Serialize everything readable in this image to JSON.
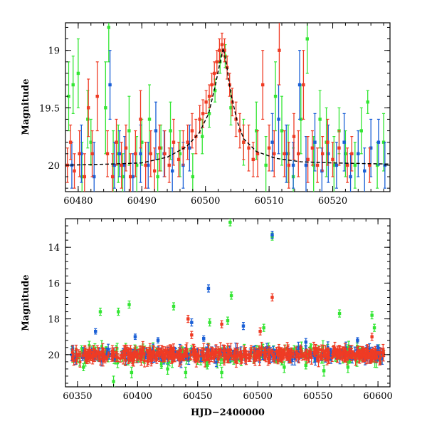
{
  "chart_data": [
    {
      "type": "scatter",
      "xlabel": "",
      "ylabel": "Magnitude",
      "xlim": [
        60478,
        60529
      ],
      "ylim": [
        20.23,
        18.76
      ],
      "y_inverted": true,
      "x_ticks": [
        60480,
        60490,
        60500,
        60510,
        60520
      ],
      "y_ticks": [
        19,
        19.5,
        20
      ],
      "y_tick_labels": [
        "19",
        "19.5",
        "20"
      ],
      "colors": {
        "green": "#33e633",
        "blue": "#1a5fd6",
        "red": "#ef3b24",
        "model": "#000000"
      },
      "model_curve": {
        "style": "dashed",
        "x": [
          60478,
          60485,
          60490,
          60494,
          60497,
          60499,
          60500.5,
          60501.5,
          60502.3,
          60502.8,
          60503.3,
          60504,
          60505,
          60506,
          60508,
          60511,
          60515,
          60520,
          60529
        ],
        "y": [
          20.0,
          19.99,
          19.98,
          19.93,
          19.84,
          19.72,
          19.55,
          19.32,
          19.1,
          18.98,
          19.12,
          19.38,
          19.62,
          19.77,
          19.88,
          19.94,
          19.97,
          19.98,
          19.99
        ]
      },
      "series": [
        {
          "color": "green",
          "points": [
            [
              60478.5,
              19.4,
              0.3
            ],
            [
              60479.2,
              19.3,
              0.25
            ],
            [
              60480.0,
              19.2,
              0.3
            ],
            [
              60480.6,
              20.1,
              0.3
            ],
            [
              60481.5,
              19.6,
              0.25
            ],
            [
              60482.0,
              19.8,
              0.2
            ],
            [
              60484.3,
              19.5,
              0.4
            ],
            [
              60484.8,
              18.8,
              0.3
            ],
            [
              60485.5,
              20.0,
              0.3
            ],
            [
              60486.3,
              19.9,
              0.25
            ],
            [
              60487.0,
              20.1,
              0.2
            ],
            [
              60488.0,
              19.7,
              0.3
            ],
            [
              60489.2,
              20.0,
              0.25
            ],
            [
              60490.0,
              19.8,
              0.2
            ],
            [
              60491.2,
              19.6,
              0.3
            ],
            [
              60492.5,
              20.1,
              0.2
            ],
            [
              60493.0,
              19.85,
              0.2
            ],
            [
              60494.5,
              19.7,
              0.25
            ],
            [
              60496.0,
              19.9,
              0.2
            ],
            [
              60498.0,
              20.1,
              0.2
            ],
            [
              60499.5,
              19.75,
              0.15
            ],
            [
              60500.6,
              19.55,
              0.12
            ],
            [
              60501.5,
              19.35,
              0.1
            ],
            [
              60502.3,
              19.1,
              0.1
            ],
            [
              60503.1,
              19.05,
              0.1
            ],
            [
              60504.0,
              19.5,
              0.15
            ],
            [
              60506.0,
              19.8,
              0.2
            ],
            [
              60508.0,
              19.7,
              0.25
            ],
            [
              60509.5,
              20.0,
              0.25
            ],
            [
              60511.0,
              19.4,
              0.3
            ],
            [
              60512.0,
              19.7,
              0.3
            ],
            [
              60513.0,
              19.9,
              0.25
            ],
            [
              60513.8,
              20.1,
              0.25
            ],
            [
              60515.0,
              19.6,
              0.3
            ],
            [
              60516.0,
              18.9,
              0.3
            ],
            [
              60517.0,
              20.0,
              0.25
            ],
            [
              60518.0,
              19.6,
              0.25
            ],
            [
              60519.0,
              19.8,
              0.3
            ],
            [
              60520.2,
              20.0,
              0.25
            ],
            [
              60521.0,
              19.7,
              0.2
            ],
            [
              60522.0,
              19.9,
              0.2
            ],
            [
              60523.5,
              20.0,
              0.2
            ],
            [
              60524.5,
              19.7,
              0.2
            ],
            [
              60525.5,
              19.45,
              0.1
            ],
            [
              60527.0,
              20.0,
              0.2
            ],
            [
              60528.0,
              19.8,
              0.25
            ]
          ]
        },
        {
          "color": "blue",
          "points": [
            [
              60479.0,
              20.0,
              0.2
            ],
            [
              60480.5,
              19.9,
              0.25
            ],
            [
              60482.5,
              20.1,
              0.3
            ],
            [
              60485.0,
              19.3,
              0.3
            ],
            [
              60485.7,
              20.0,
              0.2
            ],
            [
              60486.5,
              19.9,
              0.2
            ],
            [
              60487.3,
              20.0,
              0.25
            ],
            [
              60488.6,
              20.1,
              0.2
            ],
            [
              60489.8,
              19.9,
              0.25
            ],
            [
              60491.0,
              20.0,
              0.2
            ],
            [
              60492.2,
              19.7,
              0.25
            ],
            [
              60493.5,
              19.9,
              0.2
            ],
            [
              60494.8,
              20.05,
              0.2
            ],
            [
              60496.5,
              20.0,
              0.2
            ],
            [
              60497.5,
              19.85,
              0.2
            ],
            [
              60510.5,
              19.8,
              0.25
            ],
            [
              60511.5,
              19.6,
              0.3
            ],
            [
              60512.7,
              19.9,
              0.25
            ],
            [
              60513.8,
              20.0,
              0.2
            ],
            [
              60514.8,
              19.3,
              0.3
            ],
            [
              60515.8,
              20.0,
              0.25
            ],
            [
              60517.2,
              19.8,
              0.25
            ],
            [
              60518.3,
              20.05,
              0.2
            ],
            [
              60519.3,
              19.9,
              0.25
            ],
            [
              60520.6,
              20.0,
              0.2
            ],
            [
              60521.8,
              19.8,
              0.25
            ],
            [
              60522.8,
              20.1,
              0.2
            ],
            [
              60524.0,
              19.9,
              0.2
            ],
            [
              60525.0,
              20.05,
              0.2
            ],
            [
              60526.0,
              19.85,
              0.25
            ],
            [
              60527.2,
              19.8,
              0.2
            ],
            [
              60528.2,
              20.0,
              0.2
            ]
          ]
        },
        {
          "color": "red",
          "points": [
            [
              60478.3,
              20.0,
              0.15
            ],
            [
              60478.8,
              19.8,
              0.15
            ],
            [
              60479.4,
              20.05,
              0.15
            ],
            [
              60480.2,
              19.9,
              0.2
            ],
            [
              60481.0,
              20.1,
              0.2
            ],
            [
              60481.6,
              19.5,
              0.25
            ],
            [
              60482.2,
              19.9,
              0.2
            ],
            [
              60483.0,
              19.4,
              0.3
            ],
            [
              60484.6,
              19.9,
              0.2
            ],
            [
              60485.4,
              20.1,
              0.2
            ],
            [
              60486.0,
              19.8,
              0.2
            ],
            [
              60486.8,
              20.0,
              0.2
            ],
            [
              60487.5,
              19.85,
              0.2
            ],
            [
              60488.2,
              20.1,
              0.2
            ],
            [
              60489.0,
              19.9,
              0.2
            ],
            [
              60489.8,
              19.6,
              0.25
            ],
            [
              60490.6,
              20.0,
              0.2
            ],
            [
              60491.4,
              19.9,
              0.2
            ],
            [
              60492.0,
              20.05,
              0.2
            ],
            [
              60492.8,
              19.85,
              0.2
            ],
            [
              60493.6,
              19.9,
              0.2
            ],
            [
              60494.3,
              20.0,
              0.15
            ],
            [
              60495.0,
              19.8,
              0.2
            ],
            [
              60495.8,
              19.95,
              0.15
            ],
            [
              60496.5,
              19.85,
              0.15
            ],
            [
              60497.2,
              19.8,
              0.15
            ],
            [
              60497.9,
              19.7,
              0.15
            ],
            [
              60498.5,
              19.75,
              0.15
            ],
            [
              60499.1,
              19.6,
              0.12
            ],
            [
              60499.6,
              19.55,
              0.12
            ],
            [
              60500.1,
              19.45,
              0.1
            ],
            [
              60500.6,
              19.4,
              0.1
            ],
            [
              60501.0,
              19.3,
              0.1
            ],
            [
              60501.4,
              19.2,
              0.1
            ],
            [
              60501.8,
              19.1,
              0.1
            ],
            [
              60502.2,
              19.0,
              0.1
            ],
            [
              60502.6,
              18.95,
              0.1
            ],
            [
              60503.0,
              19.0,
              0.1
            ],
            [
              60503.4,
              19.15,
              0.1
            ],
            [
              60503.8,
              19.3,
              0.1
            ],
            [
              60504.2,
              19.45,
              0.12
            ],
            [
              60504.8,
              19.6,
              0.15
            ],
            [
              60505.4,
              19.7,
              0.15
            ],
            [
              60506.0,
              19.8,
              0.15
            ],
            [
              60506.8,
              19.85,
              0.2
            ],
            [
              60507.5,
              19.95,
              0.15
            ],
            [
              60508.2,
              19.9,
              0.2
            ],
            [
              60509.0,
              19.3,
              0.3
            ],
            [
              60510.0,
              19.85,
              0.2
            ],
            [
              60510.8,
              19.9,
              0.2
            ],
            [
              60511.6,
              19.0,
              0.3
            ],
            [
              60512.4,
              19.9,
              0.2
            ],
            [
              60513.1,
              20.0,
              0.2
            ],
            [
              60513.9,
              19.75,
              0.2
            ],
            [
              60514.6,
              19.9,
              0.2
            ],
            [
              60515.4,
              19.3,
              0.3
            ],
            [
              60516.1,
              19.95,
              0.2
            ],
            [
              60516.8,
              19.85,
              0.15
            ],
            [
              60517.6,
              20.0,
              0.15
            ],
            [
              60518.4,
              19.9,
              0.15
            ],
            [
              60519.2,
              19.8,
              0.2
            ],
            [
              60520.0,
              19.95,
              0.15
            ],
            [
              60521.0,
              19.85,
              0.15
            ],
            [
              60522.3,
              20.0,
              0.15
            ],
            [
              60523.0,
              19.9,
              0.15
            ],
            [
              60525.8,
              20.0,
              0.15
            ]
          ]
        }
      ]
    },
    {
      "type": "scatter",
      "xlabel": "HJD−2400000",
      "ylabel": "Magnitude",
      "xlim": [
        60340,
        60610
      ],
      "ylim": [
        21.8,
        12.4
      ],
      "y_inverted": true,
      "x_ticks": [
        60350,
        60400,
        60450,
        60500,
        60550,
        60600
      ],
      "y_ticks": [
        14,
        16,
        18,
        20
      ],
      "y_tick_labels": [
        "14",
        "16",
        "18",
        "20"
      ],
      "colors": {
        "green": "#33e633",
        "blue": "#1a5fd6",
        "red": "#ef3b24"
      },
      "series": [
        {
          "color": "green",
          "points": [
            [
              60477,
              12.6,
              0.2
            ],
            [
              60512,
              13.4,
              0.2
            ],
            [
              60478,
              16.7,
              0.2
            ],
            [
              60393,
              17.2,
              0.2
            ],
            [
              60430,
              17.3,
              0.2
            ],
            [
              60384,
              17.6,
              0.2
            ],
            [
              60369,
              17.6,
              0.2
            ],
            [
              60568,
              17.7,
              0.2
            ],
            [
              60595,
              17.8,
              0.2
            ],
            [
              60460,
              18.2,
              0.2
            ],
            [
              60475,
              18.1,
              0.2
            ],
            [
              60505,
              18.5,
              0.2
            ],
            [
              60597,
              18.5,
              0.2
            ],
            [
              60355,
              20.7,
              0.2
            ],
            [
              60380,
              21.5,
              0.3
            ],
            [
              60395,
              21.0,
              0.3
            ],
            [
              60425,
              20.8,
              0.3
            ],
            [
              60440,
              21.0,
              0.3
            ],
            [
              60458,
              20.6,
              0.2
            ],
            [
              60470,
              21.0,
              0.3
            ],
            [
              60522,
              20.7,
              0.3
            ],
            [
              60540,
              20.6,
              0.2
            ],
            [
              60555,
              20.9,
              0.3
            ],
            [
              60575,
              20.7,
              0.3
            ]
          ]
        },
        {
          "color": "blue",
          "points": [
            [
              60512,
              13.3,
              0.2
            ],
            [
              60459,
              16.3,
              0.2
            ],
            [
              60445,
              18.2,
              0.2
            ],
            [
              60488,
              18.4,
              0.2
            ],
            [
              60365,
              18.7,
              0.15
            ],
            [
              60398,
              19.0,
              0.15
            ],
            [
              60417,
              19.2,
              0.15
            ],
            [
              60455,
              19.1,
              0.15
            ],
            [
              60540,
              19.3,
              0.2
            ],
            [
              60583,
              19.2,
              0.15
            ],
            [
              60600,
              19.6,
              0.15
            ]
          ]
        },
        {
          "color": "red",
          "points": [
            [
              60512,
              16.8,
              0.2
            ],
            [
              60442,
              18.0,
              0.2
            ],
            [
              60470,
              18.3,
              0.2
            ],
            [
              60445,
              18.9,
              0.2
            ],
            [
              60502,
              18.7,
              0.2
            ],
            [
              60595,
              19.0,
              0.2
            ]
          ]
        }
      ],
      "band": {
        "x_from": 60345,
        "x_to": 60605,
        "mag_center": 20.0,
        "mag_half_width": 0.55
      }
    }
  ]
}
